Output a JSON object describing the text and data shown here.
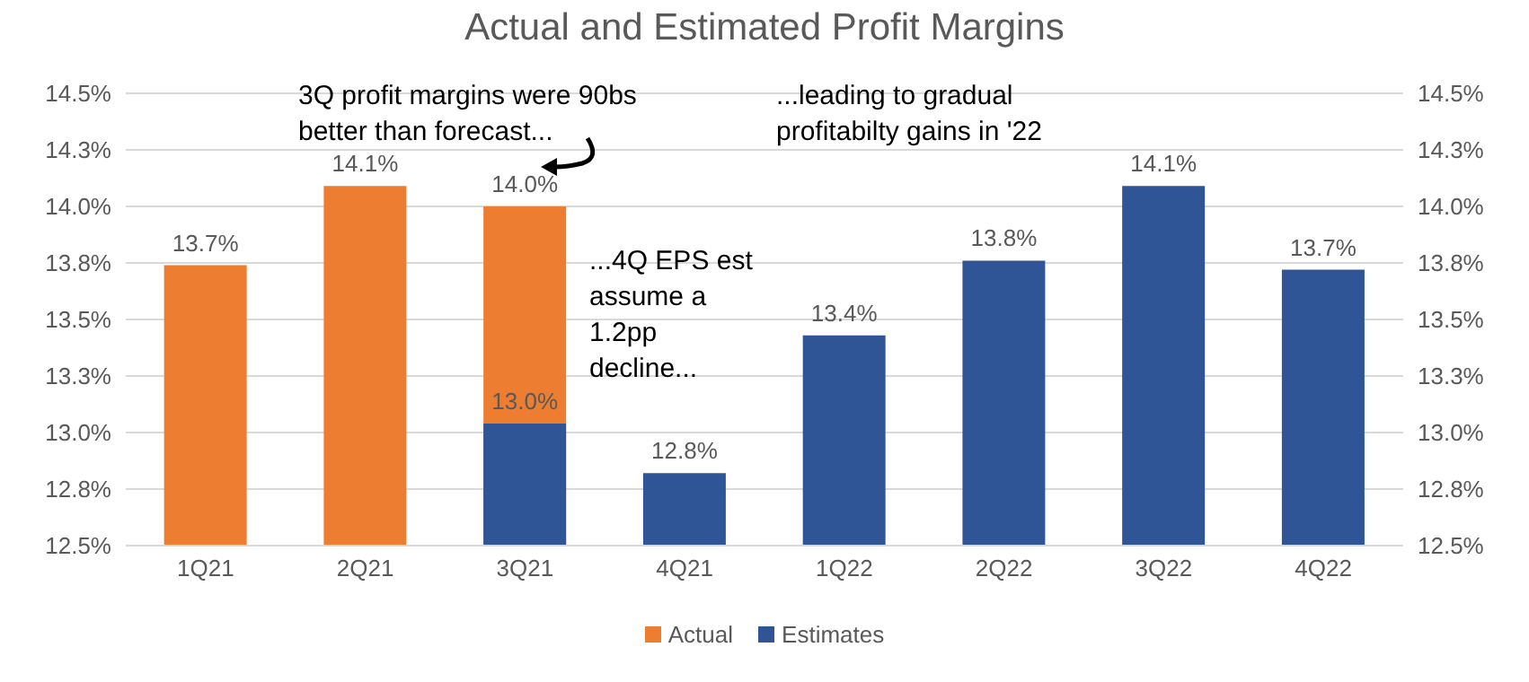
{
  "chart_data": {
    "type": "bar",
    "title": "Actual and Estimated Profit Margins",
    "categories": [
      "1Q21",
      "2Q21",
      "3Q21",
      "4Q21",
      "1Q22",
      "2Q22",
      "3Q22",
      "4Q22"
    ],
    "series": [
      {
        "name": "Actual",
        "color": "#ed7d31",
        "values": [
          13.74,
          14.09,
          14.0,
          null,
          null,
          null,
          null,
          null
        ],
        "value_labels": [
          "13.7%",
          "14.1%",
          "14.0%",
          null,
          null,
          null,
          null,
          null
        ]
      },
      {
        "name": "Estimates",
        "color": "#2f5597",
        "values": [
          null,
          null,
          13.04,
          12.82,
          13.43,
          13.76,
          14.09,
          13.72
        ],
        "value_labels": [
          null,
          null,
          "13.0%",
          "12.8%",
          "13.4%",
          "13.8%",
          "14.1%",
          "13.7%"
        ]
      }
    ],
    "ylim": [
      12.5,
      14.5
    ],
    "yticks": [
      {
        "value": 12.5,
        "label": "12.5%"
      },
      {
        "value": 12.75,
        "label": "12.8%"
      },
      {
        "value": 13.0,
        "label": "13.0%"
      },
      {
        "value": 13.25,
        "label": "13.3%"
      },
      {
        "value": 13.5,
        "label": "13.5%"
      },
      {
        "value": 13.75,
        "label": "13.8%"
      },
      {
        "value": 14.0,
        "label": "14.0%"
      },
      {
        "value": 14.25,
        "label": "14.3%"
      },
      {
        "value": 14.5,
        "label": "14.5%"
      }
    ],
    "y2lim": [
      12.5,
      14.5
    ],
    "y2ticks": [
      {
        "value": 12.5,
        "label": "12.5%"
      },
      {
        "value": 12.75,
        "label": "12.8%"
      },
      {
        "value": 13.0,
        "label": "13.0%"
      },
      {
        "value": 13.25,
        "label": "13.3%"
      },
      {
        "value": 13.5,
        "label": "13.5%"
      },
      {
        "value": 13.75,
        "label": "13.8%"
      },
      {
        "value": 14.0,
        "label": "14.0%"
      },
      {
        "value": 14.25,
        "label": "14.3%"
      },
      {
        "value": 14.5,
        "label": "14.5%"
      }
    ],
    "annotations": [
      "3Q profit margins were 90bs\nbetter than forecast...",
      "...4Q EPS est\nassume a\n1.2pp\ndecline...",
      "...leading to gradual\nprofitabilty gains in '22"
    ],
    "grid": "y",
    "legend": "bottom"
  }
}
